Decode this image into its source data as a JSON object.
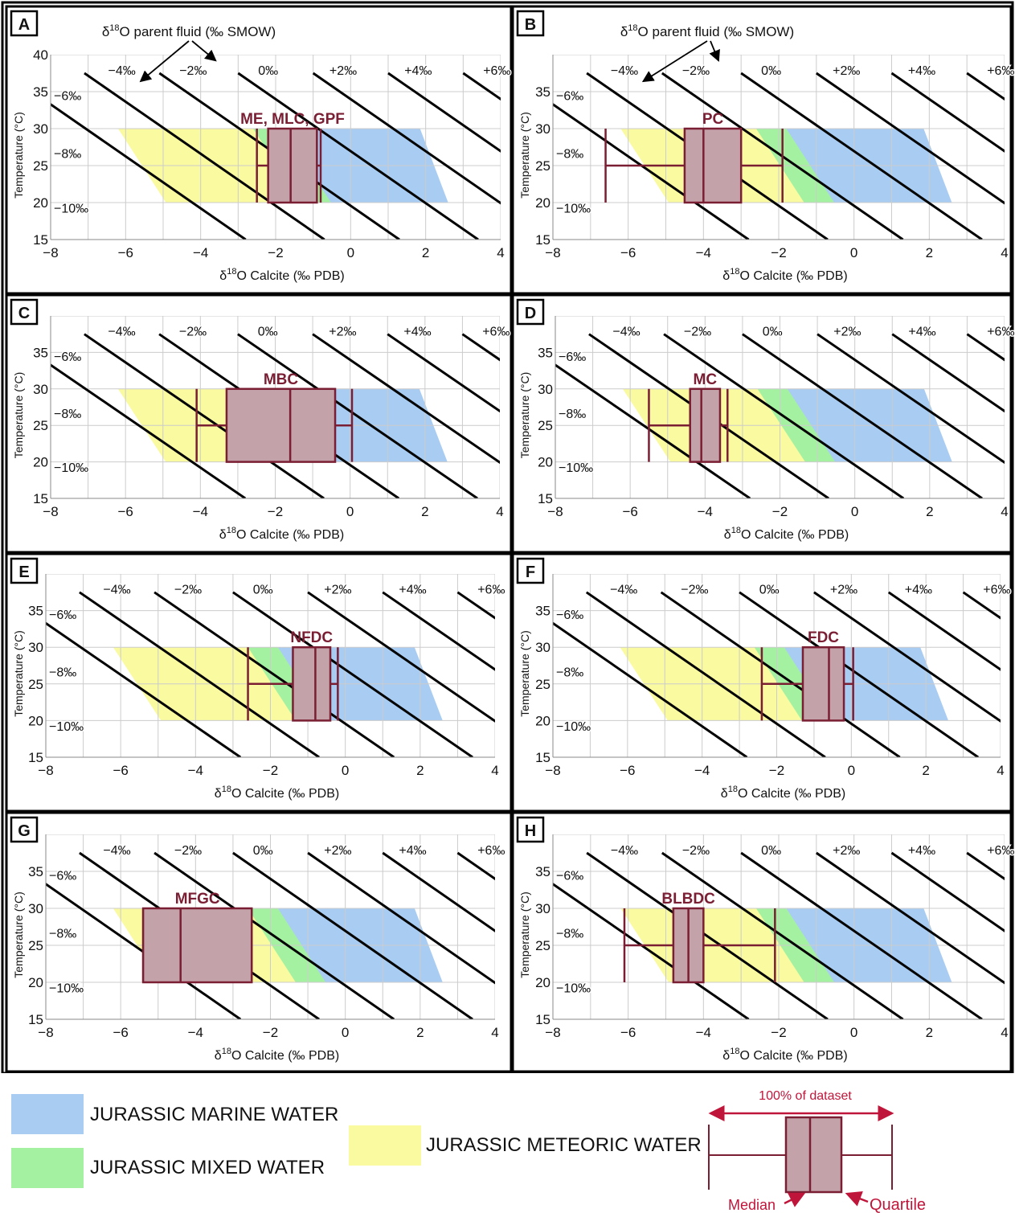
{
  "colors": {
    "marine": "#a9cdf2",
    "mixed": "#a4f1a1",
    "meteoric": "#fafaa0",
    "box_fill": "#c4a2aa",
    "box_stroke": "#7a1e33",
    "grid": "#cccccc",
    "isoline": "#000000"
  },
  "axes": {
    "xlabel_prefix": "δ",
    "xlabel_sup": "18",
    "xlabel_rest": "O Calcite (‰ PDB)",
    "ylabel": "Temperature (°C)",
    "top_label_prefix": "δ",
    "top_label_sup": "18",
    "top_label_rest": "O parent fluid (‰ SMOW)",
    "x_ticks": [
      "−8",
      "−6",
      "−4",
      "−2",
      "0",
      "2",
      "4"
    ],
    "y_ticks": [
      "15",
      "20",
      "25",
      "30",
      "35",
      "40"
    ],
    "iso_top_labels": [
      "−4‰",
      "−2‰",
      "0‰",
      "+2‰",
      "+4‰",
      "+6‰"
    ],
    "iso_left_labels": [
      "−6‰",
      "−8‰",
      "−10‰"
    ]
  },
  "chart_data": [
    {
      "panel": "A",
      "type": "box",
      "label": "ME, MLC, GPF",
      "xlim": [
        -8,
        4
      ],
      "ylim": [
        15,
        40
      ],
      "box": {
        "min": -2.5,
        "q1": -2.2,
        "median": -1.6,
        "q3": -0.9,
        "max": -0.8
      },
      "fluid_water": {
        "meteoric": [
          -6.2,
          -2.9
        ],
        "mixed": [
          -2.9,
          -1.6
        ],
        "marine": [
          -1.4,
          0.3
        ]
      }
    },
    {
      "panel": "B",
      "type": "box",
      "label": "PC",
      "xlim": [
        -8,
        4
      ],
      "ylim": [
        15,
        40
      ],
      "box": {
        "min": -6.6,
        "q1": -4.5,
        "median": -4.0,
        "q3": -3.0,
        "max": -1.9
      }
    },
    {
      "panel": "C",
      "type": "box",
      "label": "MBC",
      "xlim": [
        -8,
        4
      ],
      "ylim": [
        15,
        40
      ],
      "box": {
        "min": -4.1,
        "q1": -3.3,
        "median": -1.6,
        "q3": -0.4,
        "max": 0.05
      }
    },
    {
      "panel": "D",
      "type": "box",
      "label": "MC",
      "xlim": [
        -8,
        4
      ],
      "ylim": [
        15,
        40
      ],
      "box": {
        "min": -5.5,
        "q1": -4.4,
        "median": -4.1,
        "q3": -3.6,
        "max": -3.4
      }
    },
    {
      "panel": "E",
      "type": "box",
      "label": "NFDC",
      "xlim": [
        -8,
        4
      ],
      "ylim": [
        15,
        40
      ],
      "box": {
        "min": -2.6,
        "q1": -1.4,
        "median": -0.8,
        "q3": -0.4,
        "max": -0.2
      }
    },
    {
      "panel": "F",
      "type": "box",
      "label": "FDC",
      "xlim": [
        -8,
        4
      ],
      "ylim": [
        15,
        40
      ],
      "box": {
        "min": -2.4,
        "q1": -1.3,
        "median": -0.6,
        "q3": -0.2,
        "max": 0.05
      }
    },
    {
      "panel": "G",
      "type": "box",
      "label": "MFGC",
      "xlim": [
        -8,
        4
      ],
      "ylim": [
        15,
        40
      ],
      "box": {
        "min": -5.4,
        "q1": -5.4,
        "median": -4.4,
        "q3": -2.5,
        "max": -2.5
      }
    },
    {
      "panel": "H",
      "type": "box",
      "label": "BLBDC",
      "xlim": [
        -8,
        4
      ],
      "ylim": [
        15,
        40
      ],
      "box": {
        "min": -6.1,
        "q1": -4.8,
        "median": -4.4,
        "q3": -4.0,
        "max": -2.1
      }
    }
  ],
  "legend": {
    "marine": "JURASSIC MARINE WATER",
    "mixed": "JURASSIC MIXED WATER",
    "meteoric": "JURASSIC METEORIC WATER",
    "key_range": "100% of dataset",
    "key_median": "Median",
    "key_quartile": "Quartile"
  }
}
